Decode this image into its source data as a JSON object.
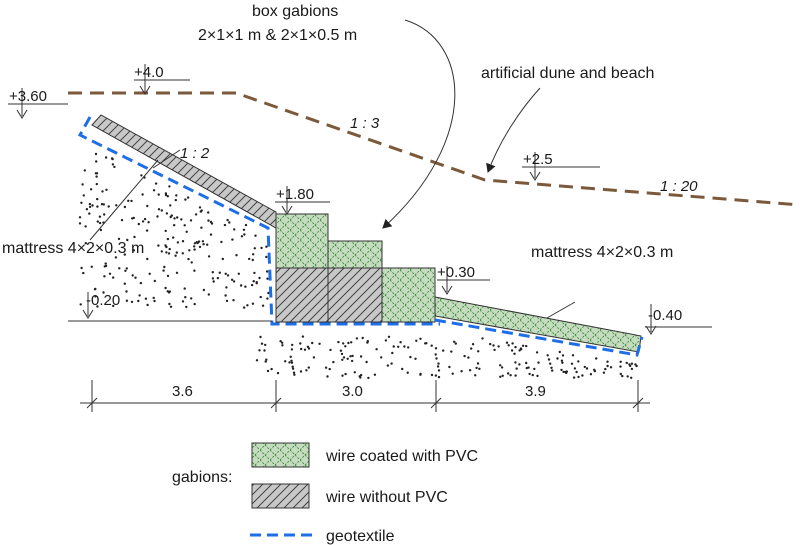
{
  "labels": {
    "box_gabions_title": "box gabions",
    "box_gabions_sizes": "2×1×1 m &  2×1×0.5 m",
    "artificial_dune": "artificial dune and beach",
    "mattress_left": "mattress 4×2×0.3 m",
    "mattress_right": "mattress 4×2×0.3 m",
    "slope_1_2": "1 : 2",
    "slope_1_3": "1 : 3",
    "slope_1_20": "1 : 20"
  },
  "levels": {
    "lvl_360": "+3.60",
    "lvl_40": "+4.0",
    "lvl_25": "+2.5",
    "lvl_180": "+1.80",
    "lvl_030": "+0.30",
    "lvl_m020": "-0.20",
    "lvl_m040": "-0.40"
  },
  "dimensions": {
    "left": "3.6",
    "middle": "3.0",
    "right": "3.9"
  },
  "legend": {
    "heading": "gabions:",
    "pvc": "wire coated with PVC",
    "no_pvc": "wire without PVC",
    "geotextile": "geotextile"
  },
  "colors": {
    "pvc_fill": "#c5dcc0",
    "no_pvc_fill": "#c8c8c8",
    "geotextile": "#1e6ee8",
    "dune_line": "#7b5a3c"
  }
}
